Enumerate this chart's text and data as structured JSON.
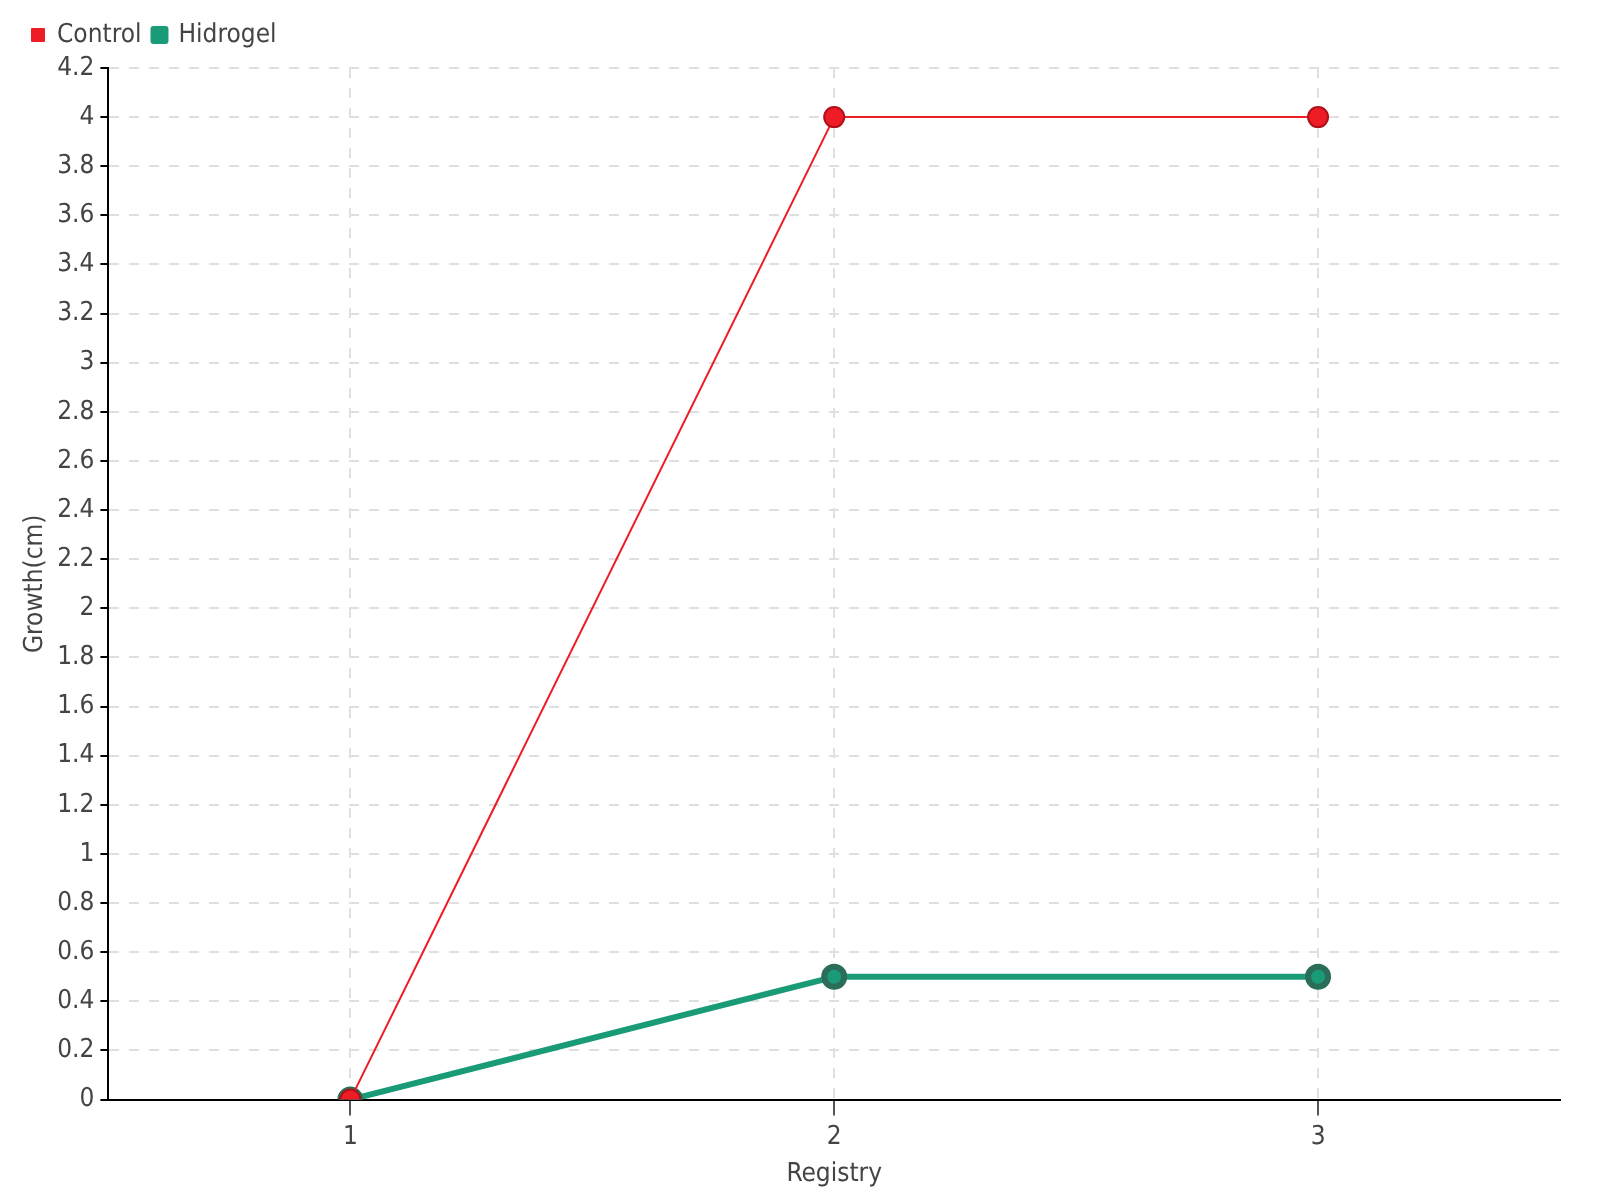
{
  "chart_data": {
    "type": "line",
    "xlabel": "Registry",
    "ylabel": "Growth(cm)",
    "x": [
      1,
      2,
      3
    ],
    "xlim": [
      0.5,
      3.5
    ],
    "xticks": [
      1,
      2,
      3
    ],
    "ylim": [
      0,
      4.2
    ],
    "yticks": [
      0,
      0.2,
      0.4,
      0.6,
      0.8,
      1,
      1.2,
      1.4,
      1.6,
      1.8,
      2,
      2.2,
      2.4,
      2.6,
      2.8,
      3,
      3.2,
      3.4,
      3.6,
      3.8,
      4,
      4.2
    ],
    "series": [
      {
        "name": "Hidrogel",
        "color": "#1a9b78",
        "values": [
          0,
          0.5,
          0.5
        ]
      },
      {
        "name": "Control",
        "color": "#ee1c25",
        "values": [
          0,
          4,
          4
        ]
      }
    ],
    "grid": true,
    "legend": "top left",
    "marker": "circle",
    "line_style": "solid"
  }
}
